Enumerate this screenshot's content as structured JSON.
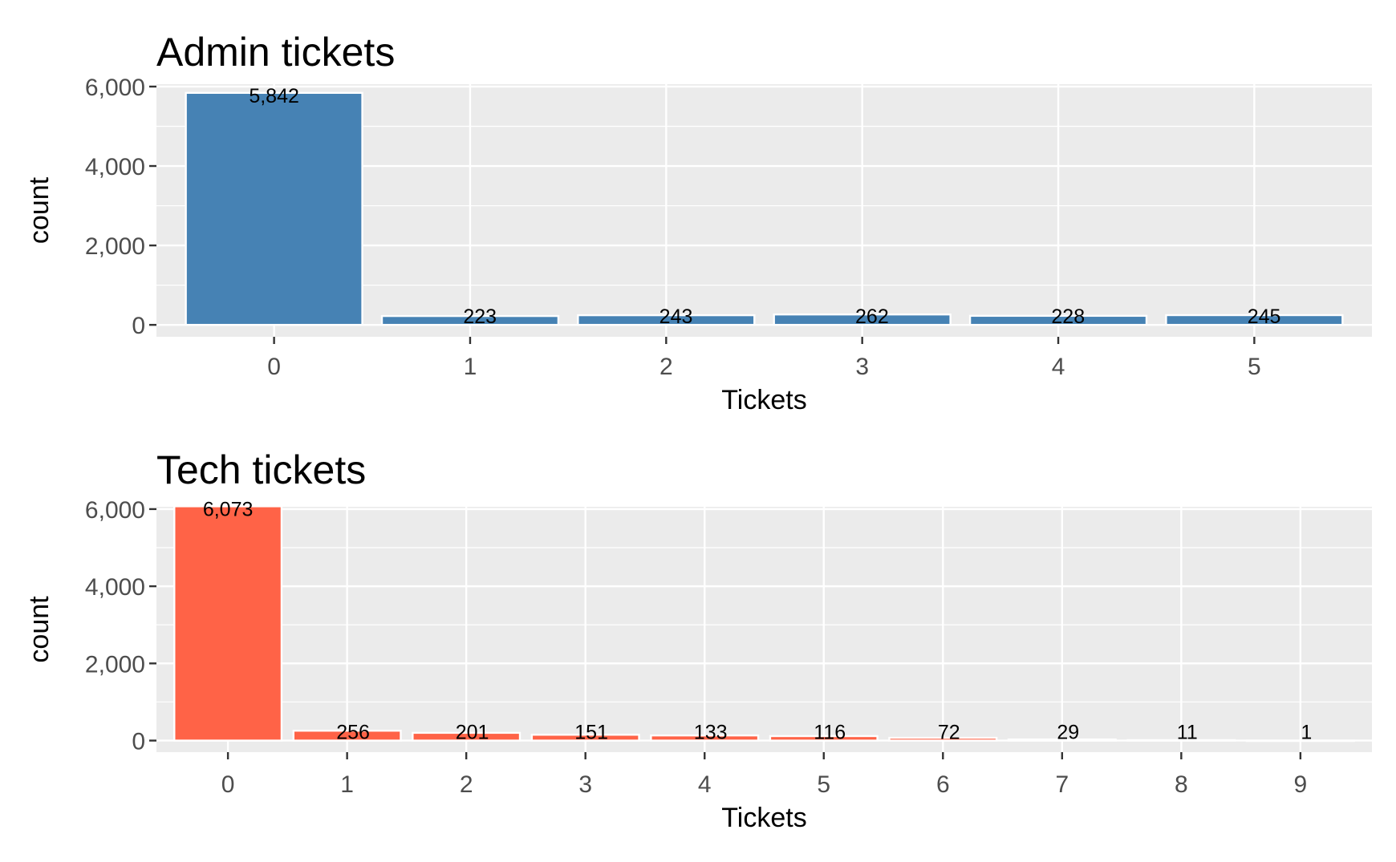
{
  "chart_data": [
    {
      "type": "bar",
      "title": "Admin tickets",
      "xlabel": "Tickets",
      "ylabel": "count",
      "categories": [
        "0",
        "1",
        "2",
        "3",
        "4",
        "5"
      ],
      "values": [
        5842,
        223,
        243,
        262,
        228,
        245
      ],
      "value_labels": [
        "5,842",
        "223",
        "243",
        "262",
        "228",
        "245"
      ],
      "ylim": [
        0,
        6000
      ],
      "yticks": [
        0,
        2000,
        4000,
        6000
      ],
      "ytick_labels": [
        "0",
        "2,000",
        "4,000",
        "6,000"
      ],
      "color": "#4682B4",
      "grid": true,
      "legend": "none"
    },
    {
      "type": "bar",
      "title": "Tech tickets",
      "xlabel": "Tickets",
      "ylabel": "count",
      "categories": [
        "0",
        "1",
        "2",
        "3",
        "4",
        "5",
        "6",
        "7",
        "8",
        "9"
      ],
      "values": [
        6073,
        256,
        201,
        151,
        133,
        116,
        72,
        29,
        11,
        1
      ],
      "value_labels": [
        "6,073",
        "256",
        "201",
        "151",
        "133",
        "116",
        "72",
        "29",
        "11",
        "1"
      ],
      "ylim": [
        0,
        6000
      ],
      "yticks": [
        0,
        2000,
        4000,
        6000
      ],
      "ytick_labels": [
        "0",
        "2,000",
        "4,000",
        "6,000"
      ],
      "color": "#FF6347",
      "grid": true,
      "legend": "none"
    }
  ]
}
